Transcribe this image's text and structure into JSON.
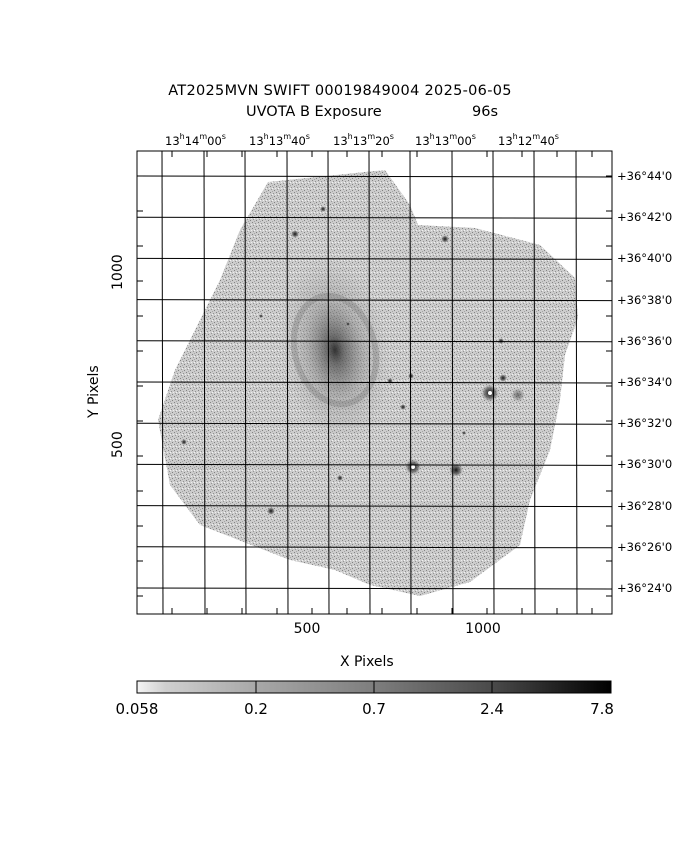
{
  "header": {
    "line1": "AT2025MVN SWIFT 00019849004 2025-06-05",
    "line2_left": "UVOTA B Exposure",
    "line2_right": "96s"
  },
  "ra_labels": [
    {
      "h": "13",
      "m": "14",
      "s": "00"
    },
    {
      "h": "13",
      "m": "13",
      "s": "40"
    },
    {
      "h": "13",
      "m": "13",
      "s": "20"
    },
    {
      "h": "13",
      "m": "13",
      "s": "00"
    },
    {
      "h": "13",
      "m": "12",
      "s": "40"
    }
  ],
  "dec_labels": [
    "+36°44'0",
    "+36°42'0",
    "+36°40'0",
    "+36°38'0",
    "+36°36'0",
    "+36°34'0",
    "+36°32'0",
    "+36°30'0",
    "+36°28'0",
    "+36°26'0",
    "+36°24'0"
  ],
  "axes": {
    "xlabel": "X Pixels",
    "ylabel": "Y Pixels",
    "xticks": [
      "500",
      "1000"
    ],
    "yticks": [
      "1000",
      "500"
    ]
  },
  "colorbar": {
    "labels": [
      "0.058",
      "0.2",
      "0.7",
      "2.4",
      "7.8"
    ]
  },
  "colors": {
    "background": "#ffffff",
    "grid": "#000000",
    "image_fill": "#9a9a9a"
  }
}
